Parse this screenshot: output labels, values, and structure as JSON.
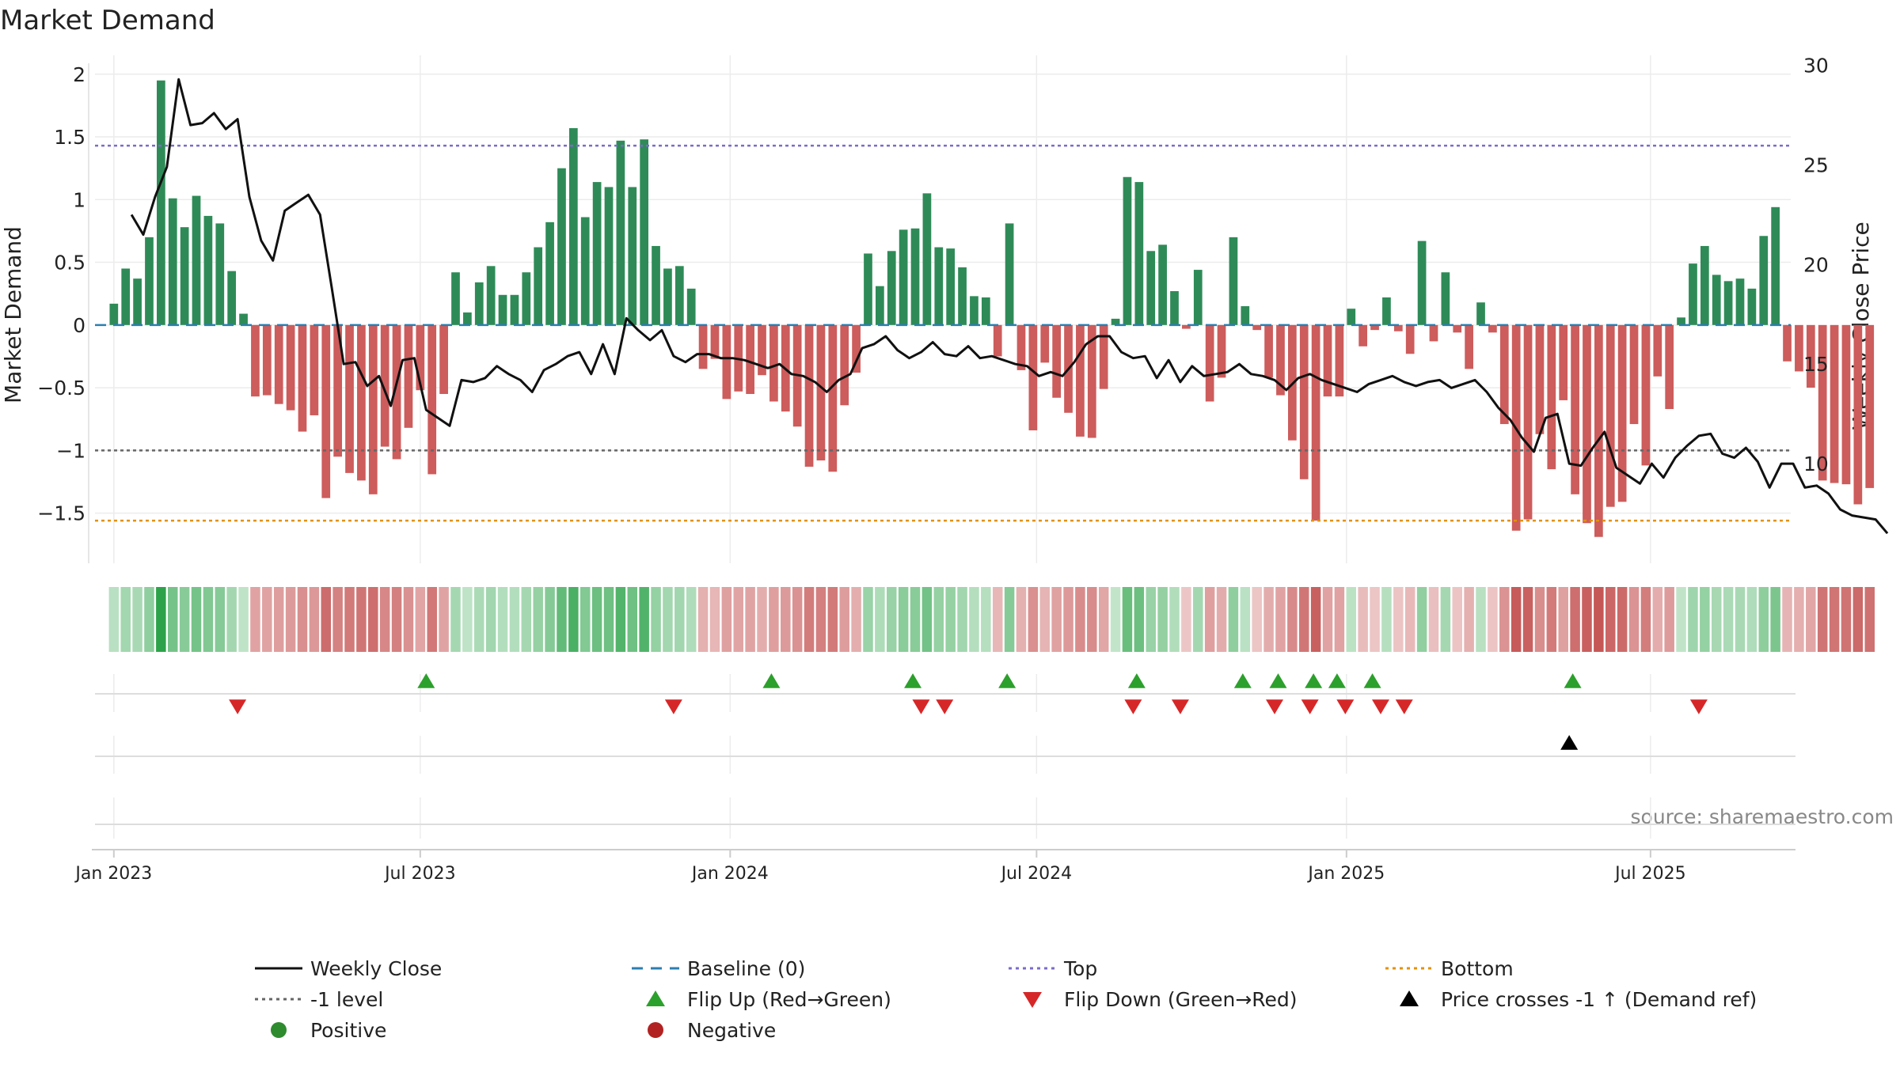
{
  "chart_data": {
    "type": "bar",
    "title": "Market Demand",
    "ylabel": "Market Demand",
    "y2label": "Weekly Close Price",
    "ylim": [
      -1.9,
      2.15
    ],
    "y2lim": [
      5.0,
      30.5
    ],
    "yticks": [
      2,
      1.5,
      1,
      0.5,
      0,
      -0.5,
      -1,
      -1.5
    ],
    "ytick_labels": [
      "2",
      "1.5",
      "1",
      "0.5",
      "0",
      "−0.5",
      "−1",
      "−1.5"
    ],
    "y2ticks": [
      30,
      25,
      20,
      15,
      10
    ],
    "y2tick_labels": [
      "30",
      "25",
      "20",
      "15",
      "10"
    ],
    "xticks": [
      0,
      26,
      52.3,
      78.3,
      104.6,
      130.4
    ],
    "xtick_labels": [
      "Jan 2023",
      "Jul 2023",
      "Jan 2024",
      "Jul 2024",
      "Jan 2025",
      "Jul 2025"
    ],
    "x_range": [
      -1.6,
      142.3
    ],
    "top_level": 1.43,
    "bottom_level": -1.56,
    "minus_one_level": -1,
    "source": "source: sharemaestro.com",
    "demand": [
      0.17,
      0.45,
      0.37,
      0.7,
      1.95,
      1.01,
      0.78,
      1.03,
      0.87,
      0.81,
      0.43,
      0.09,
      -0.57,
      -0.56,
      -0.63,
      -0.68,
      -0.85,
      -0.72,
      -1.38,
      -1.05,
      -1.18,
      -1.24,
      -1.35,
      -0.97,
      -1.07,
      -0.82,
      -0.52,
      -1.19,
      -0.55,
      0.42,
      0.1,
      0.34,
      0.47,
      0.24,
      0.24,
      0.42,
      0.62,
      0.82,
      1.25,
      1.57,
      0.86,
      1.14,
      1.1,
      1.47,
      1.1,
      1.48,
      0.63,
      0.45,
      0.47,
      0.29,
      -0.35,
      -0.27,
      -0.59,
      -0.53,
      -0.55,
      -0.4,
      -0.61,
      -0.69,
      -0.81,
      -1.13,
      -1.08,
      -1.17,
      -0.64,
      -0.38,
      0.57,
      0.31,
      0.59,
      0.76,
      0.77,
      1.05,
      0.62,
      0.61,
      0.46,
      0.23,
      0.22,
      -0.25,
      0.81,
      -0.36,
      -0.84,
      -0.3,
      -0.58,
      -0.7,
      -0.89,
      -0.9,
      -0.51,
      0.05,
      1.18,
      1.14,
      0.59,
      0.64,
      0.27,
      -0.03,
      0.44,
      -0.61,
      -0.42,
      0.7,
      0.15,
      -0.04,
      -0.42,
      -0.56,
      -0.92,
      -1.23,
      -1.56,
      -0.57,
      -0.57,
      0.13,
      -0.17,
      -0.04,
      0.22,
      -0.05,
      -0.23,
      0.67,
      -0.13,
      0.42,
      -0.06,
      -0.35,
      0.18,
      -0.06,
      -0.79,
      -1.64,
      -1.55,
      -0.87,
      -1.15,
      -0.6,
      -1.35,
      -1.58,
      -1.69,
      -1.45,
      -1.41,
      -0.79,
      -1.12,
      -0.41,
      -0.67,
      0.06,
      0.49,
      0.63,
      0.4,
      0.35,
      0.37,
      0.29,
      0.71,
      0.94,
      -0.29,
      -0.37,
      -0.5,
      -1.24,
      -1.26,
      -1.27,
      -1.43,
      -1.3
    ],
    "close": [
      22.5,
      21.5,
      23.4,
      24.9,
      29.3,
      27.0,
      27.1,
      27.6,
      26.8,
      27.3,
      23.4,
      21.2,
      20.2,
      22.7,
      23.1,
      23.5,
      22.5,
      18.8,
      15.0,
      15.1,
      13.9,
      14.4,
      12.9,
      15.2,
      15.3,
      12.7,
      12.3,
      11.9,
      14.2,
      14.1,
      14.3,
      14.9,
      14.5,
      14.2,
      13.6,
      14.7,
      15.0,
      15.4,
      15.6,
      14.5,
      16.0,
      14.5,
      17.3,
      16.7,
      16.2,
      16.7,
      15.4,
      15.1,
      15.5,
      15.5,
      15.3,
      15.3,
      15.2,
      15.0,
      14.8,
      15.0,
      14.5,
      14.4,
      14.1,
      13.6,
      14.2,
      14.5,
      15.8,
      16.0,
      16.4,
      15.7,
      15.3,
      15.6,
      16.1,
      15.5,
      15.4,
      15.9,
      15.3,
      15.4,
      15.2,
      15.0,
      14.9,
      14.4,
      14.6,
      14.4,
      15.1,
      16.0,
      16.4,
      16.4,
      15.6,
      15.3,
      15.4,
      14.3,
      15.2,
      14.1,
      14.9,
      14.4,
      14.5,
      14.6,
      15.0,
      14.5,
      14.4,
      14.2,
      13.7,
      14.3,
      14.5,
      14.2,
      14.0,
      13.8,
      13.6,
      14.0,
      14.2,
      14.4,
      14.1,
      13.9,
      14.1,
      14.2,
      13.8,
      14.0,
      14.2,
      13.6,
      12.8,
      12.2,
      11.3,
      10.6,
      12.3,
      12.5,
      10.0,
      9.9,
      10.8,
      11.6,
      9.8,
      9.4,
      9.0,
      10.0,
      9.3,
      10.3,
      10.9,
      11.4,
      11.5,
      10.5,
      10.3,
      10.8,
      10.1,
      8.8,
      10.0,
      10.0,
      8.8,
      8.9,
      8.5,
      7.7,
      7.4,
      7.3,
      7.2,
      6.5
    ],
    "close_x_offset": 1.5,
    "flip_up": [
      26.5,
      55.8,
      67.8,
      75.8,
      86.8,
      95.8,
      98.8,
      101.8,
      103.8,
      106.8,
      123.8
    ],
    "flip_down": [
      10.5,
      47.5,
      68.5,
      70.5,
      86.5,
      90.5,
      98.5,
      101.5,
      104.5,
      107.5,
      109.5,
      134.5
    ],
    "price_cross": [
      123.5
    ],
    "legend": [
      {
        "label": "Weekly Close",
        "marker": "line-solid",
        "color": "#111111"
      },
      {
        "label": "Baseline (0)",
        "marker": "line-dash",
        "color": "#2a7fb0"
      },
      {
        "label": "Top",
        "marker": "line-dot",
        "color": "#7a6cc9"
      },
      {
        "label": "Bottom",
        "marker": "line-dot",
        "color": "#e39200"
      },
      {
        "label": "-1 level",
        "marker": "line-dot",
        "color": "#666666"
      },
      {
        "label": "Flip Up (Red→Green)",
        "marker": "tri-up",
        "color": "#2ca02c"
      },
      {
        "label": "Flip Down (Green→Red)",
        "marker": "tri-down",
        "color": "#d62728"
      },
      {
        "label": "Price crosses -1 ↑ (Demand ref)",
        "marker": "tri-up",
        "color": "#000000"
      },
      {
        "label": "Positive",
        "marker": "dot",
        "color": "#2e8b2e"
      },
      {
        "label": "Negative",
        "marker": "dot",
        "color": "#b22222"
      }
    ],
    "colors": {
      "positive": "#2e8b57",
      "negative": "#cd5c5c",
      "close": "#111111",
      "baseline": "#2a7fb0",
      "top": "#7a6cc9",
      "bottom": "#e39200",
      "minus_one": "#666666",
      "grid": "#ececec",
      "flip_up": "#2ca02c",
      "flip_down": "#d62728",
      "cross": "#000000"
    }
  }
}
